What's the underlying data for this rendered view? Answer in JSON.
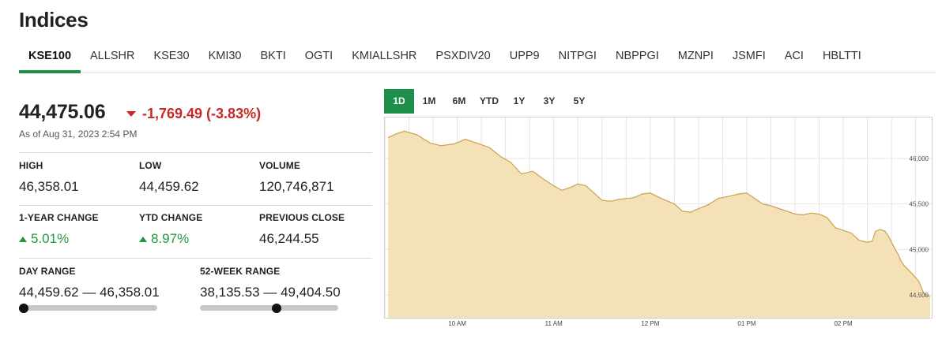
{
  "page_title": "Indices",
  "tabs": [
    "KSE100",
    "ALLSHR",
    "KSE30",
    "KMI30",
    "BKTI",
    "OGTI",
    "KMIALLSHR",
    "PSXDIV20",
    "UPP9",
    "NITPGI",
    "NBPPGI",
    "MZNPI",
    "JSMFI",
    "ACI",
    "HBLTTI"
  ],
  "active_tab": "KSE100",
  "summary": {
    "price": "44,475.06",
    "change": "-1,769.49 (-3.83%)",
    "as_of": "As of Aug 31, 2023 2:54 PM"
  },
  "stats": {
    "high_label": "HIGH",
    "high_value": "46,358.01",
    "low_label": "LOW",
    "low_value": "44,459.62",
    "volume_label": "VOLUME",
    "volume_value": "120,746,871",
    "one_year_label": "1-YEAR CHANGE",
    "one_year_value": "5.01%",
    "ytd_label": "YTD CHANGE",
    "ytd_value": "8.97%",
    "prev_close_label": "PREVIOUS CLOSE",
    "prev_close_value": "46,244.55",
    "day_range_label": "DAY RANGE",
    "day_range_value": "44,459.62 — 46,358.01",
    "day_range_position": 0.0,
    "week52_label": "52-WEEK RANGE",
    "week52_value": "38,135.53 — 49,404.50",
    "week52_position": 0.56
  },
  "periods": [
    "1D",
    "1M",
    "6M",
    "YTD",
    "1Y",
    "3Y",
    "5Y"
  ],
  "active_period": "1D",
  "colors": {
    "accent_green": "#1e8f4a",
    "down_red": "#c62828",
    "up_green": "#1e9a3e",
    "area_fill": "#f5e1b8",
    "area_line": "#c9a24a"
  },
  "chart_data": {
    "type": "area",
    "title": "",
    "xlabel": "",
    "ylabel": "",
    "xlim": [
      "09:15",
      "14:55"
    ],
    "ylim": [
      44250,
      46450
    ],
    "y_ticks": [
      44500,
      45000,
      45500,
      46000
    ],
    "y_tick_labels": [
      "44,500",
      "45,000",
      "45,500",
      "46,000"
    ],
    "x_ticks": [
      "10:00",
      "11:00",
      "12:00",
      "13:00",
      "14:00"
    ],
    "x_tick_labels": [
      "10 AM",
      "11 AM",
      "12 PM",
      "01 PM",
      "02 PM"
    ],
    "grid": true,
    "series": [
      {
        "x": [
          "09:17",
          "09:22",
          "09:27",
          "09:35",
          "09:43",
          "09:50",
          "09:58",
          "10:05",
          "10:12",
          "10:20",
          "10:27",
          "10:33",
          "10:40",
          "10:47",
          "10:53",
          "11:00",
          "11:05",
          "11:10",
          "11:15",
          "11:20",
          "11:25",
          "11:30",
          "11:36",
          "11:40",
          "11:45",
          "11:50",
          "11:55",
          "12:00",
          "12:07",
          "12:15",
          "12:20",
          "12:25",
          "12:30",
          "12:36",
          "12:42",
          "12:48",
          "12:55",
          "13:00",
          "13:05",
          "13:10",
          "13:15",
          "13:20",
          "13:25",
          "13:30",
          "13:35",
          "13:40",
          "13:45",
          "13:50",
          "13:55",
          "14:00",
          "14:05",
          "14:10",
          "14:15",
          "14:18",
          "14:20",
          "14:23",
          "14:26",
          "14:28",
          "14:30",
          "14:32",
          "14:34",
          "14:36",
          "14:38",
          "14:42",
          "14:47",
          "14:50",
          "14:54"
        ],
        "y": [
          46230,
          46270,
          46300,
          46260,
          46170,
          46140,
          46160,
          46210,
          46170,
          46120,
          46020,
          45960,
          45830,
          45860,
          45780,
          45700,
          45650,
          45680,
          45720,
          45700,
          45620,
          45540,
          45530,
          45550,
          45560,
          45570,
          45610,
          45620,
          45560,
          45500,
          45420,
          45410,
          45450,
          45490,
          45560,
          45580,
          45610,
          45620,
          45560,
          45500,
          45480,
          45450,
          45420,
          45390,
          45380,
          45400,
          45390,
          45350,
          45240,
          45210,
          45180,
          45100,
          45080,
          45090,
          45200,
          45220,
          45200,
          45150,
          45080,
          45010,
          44950,
          44870,
          44820,
          44750,
          44650,
          44520,
          44480
        ]
      }
    ]
  }
}
